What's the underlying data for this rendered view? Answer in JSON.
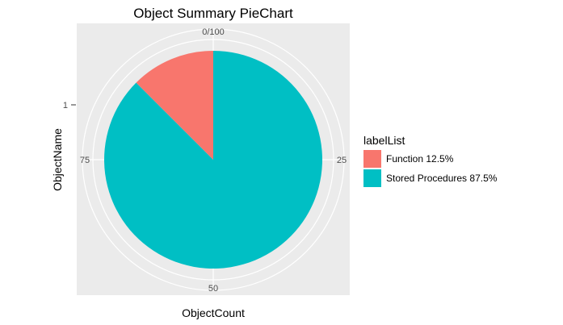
{
  "chart_data": {
    "type": "pie",
    "title": "Object Summary PieChart",
    "xlabel": "ObjectCount",
    "ylabel": "ObjectName",
    "theta_ticks": [
      "0/100",
      "25",
      "50",
      "75"
    ],
    "y_ticks": [
      "1"
    ],
    "legend_title": "labelList",
    "legend_position": "right",
    "grid": true,
    "slices": [
      {
        "label": "Function 12.5%",
        "value": 12.5,
        "color": "#F8766D"
      },
      {
        "label": "Stored Procedures 87.5%",
        "value": 87.5,
        "color": "#00BFC4"
      }
    ],
    "panel_background": "#EBEBEB",
    "gridline_color": "#FFFFFF"
  }
}
